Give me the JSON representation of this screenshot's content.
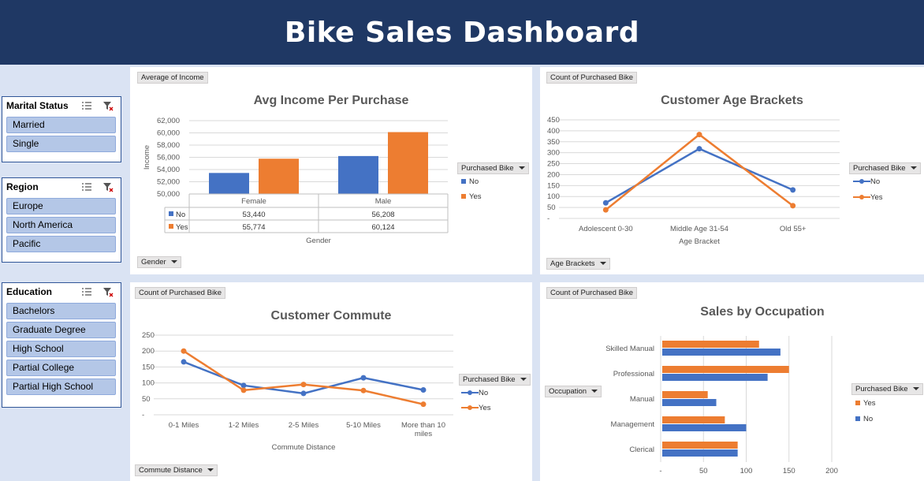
{
  "dashboard": {
    "title": "Bike Sales Dashboard"
  },
  "colors": {
    "no": "#4472c4",
    "yes": "#ed7d31",
    "banner": "#1f3864"
  },
  "slicers": {
    "marital": {
      "title": "Marital Status",
      "items": [
        "Married",
        "Single"
      ]
    },
    "region": {
      "title": "Region",
      "items": [
        "Europe",
        "North America",
        "Pacific"
      ]
    },
    "education": {
      "title": "Education",
      "items": [
        "Bachelors",
        "Graduate Degree",
        "High School",
        "Partial College",
        "Partial High School"
      ]
    }
  },
  "charts": {
    "income": {
      "value_button": "Average of Income",
      "axis_button": "Gender",
      "legend_button": "Purchased Bike"
    },
    "age": {
      "value_button": "Count of Purchased Bike",
      "axis_button": "Age Brackets",
      "legend_button": "Purchased Bike"
    },
    "commute": {
      "value_button": "Count of Purchased Bike",
      "axis_button": "Commute Distance",
      "legend_button": "Purchased Bike"
    },
    "occupation": {
      "value_button": "Count of Purchased Bike",
      "axis_button": "Occupation",
      "legend_button": "Purchased Bike"
    }
  },
  "chart_data": [
    {
      "id": "income",
      "type": "bar",
      "title": "Avg Income Per Purchase",
      "xlabel": "Gender",
      "ylabel": "Income",
      "categories": [
        "Female",
        "Male"
      ],
      "series": [
        {
          "name": "No",
          "values": [
            53440,
            56208
          ],
          "labels": [
            "53,440",
            "56,208"
          ]
        },
        {
          "name": "Yes",
          "values": [
            55774,
            60124
          ],
          "labels": [
            "55,774",
            "60,124"
          ]
        }
      ],
      "ylim": [
        50000,
        62000
      ],
      "yticks": [
        "50,000",
        "52,000",
        "54,000",
        "56,000",
        "58,000",
        "60,000",
        "62,000"
      ],
      "legend": [
        "No",
        "Yes"
      ],
      "data_table": true
    },
    {
      "id": "age",
      "type": "line",
      "title": "Customer Age Brackets",
      "xlabel": "Age Bracket",
      "categories": [
        "Adolescent 0-30",
        "Middle Age 31-54",
        "Old 55+"
      ],
      "series": [
        {
          "name": "No",
          "values": [
            71,
            318,
            130
          ]
        },
        {
          "name": "Yes",
          "values": [
            39,
            383,
            58
          ]
        }
      ],
      "ylim": [
        0,
        450
      ],
      "yticks": [
        "-",
        "50",
        "100",
        "150",
        "200",
        "250",
        "300",
        "350",
        "400",
        "450"
      ],
      "legend": [
        "No",
        "Yes"
      ]
    },
    {
      "id": "commute",
      "type": "line",
      "title": "Customer Commute",
      "xlabel": "Commute Distance",
      "categories": [
        "0-1 Miles",
        "1-2 Miles",
        "2-5 Miles",
        "5-10 Miles",
        "More than 10 miles"
      ],
      "series": [
        {
          "name": "No",
          "values": [
            166,
            92,
            67,
            116,
            78
          ]
        },
        {
          "name": "Yes",
          "values": [
            200,
            77,
            95,
            76,
            33
          ]
        }
      ],
      "ylim": [
        0,
        250
      ],
      "yticks": [
        "-",
        "50",
        "100",
        "150",
        "200",
        "250"
      ],
      "legend": [
        "No",
        "Yes"
      ]
    },
    {
      "id": "occupation",
      "type": "bar",
      "orientation": "horizontal",
      "title": "Sales by Occupation",
      "categories": [
        "Skilled Manual",
        "Professional",
        "Manual",
        "Management",
        "Clerical"
      ],
      "series": [
        {
          "name": "Yes",
          "values": [
            115,
            150,
            55,
            75,
            90
          ]
        },
        {
          "name": "No",
          "values": [
            140,
            125,
            65,
            100,
            90
          ]
        }
      ],
      "xlim": [
        0,
        200
      ],
      "xticks": [
        "-",
        "50",
        "100",
        "150",
        "200"
      ],
      "legend": [
        "Yes",
        "No"
      ]
    }
  ]
}
